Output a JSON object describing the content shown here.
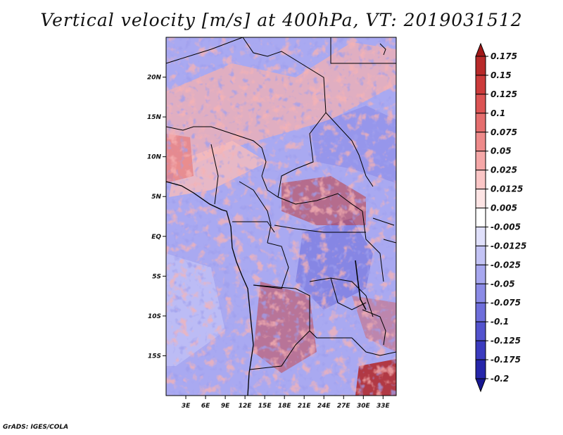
{
  "title": "Vertical velocity [m/s] at 400hPa, VT: 2019031512",
  "credit": "GrADS: IGES/COLA",
  "map": {
    "lat_labels": [
      "20N",
      "15N",
      "10N",
      "5N",
      "EQ",
      "5S",
      "10S",
      "15S"
    ],
    "lon_labels": [
      "3E",
      "6E",
      "9E",
      "12E",
      "15E",
      "18E",
      "21E",
      "24E",
      "27E",
      "30E",
      "33E"
    ],
    "lat_values": [
      20,
      15,
      10,
      5,
      0,
      -5,
      -10,
      -15
    ],
    "lon_values": [
      3,
      6,
      9,
      12,
      15,
      18,
      21,
      24,
      27,
      30,
      33
    ],
    "domain": {
      "lon_min": 0,
      "lon_max": 35,
      "lat_min": -20,
      "lat_max": 25
    }
  },
  "colorbar": {
    "levels": [
      "0.175",
      "0.15",
      "0.125",
      "0.1",
      "0.075",
      "0.05",
      "0.025",
      "0.0125",
      "0.005",
      "-0.005",
      "-0.0125",
      "-0.025",
      "-0.05",
      "-0.075",
      "-0.1",
      "-0.125",
      "-0.175",
      "-0.2"
    ],
    "colors": [
      "#a01818",
      "#b82a2a",
      "#cc3b3b",
      "#dc5454",
      "#e56e6e",
      "#ee8a8a",
      "#f5a7a7",
      "#fbc6c6",
      "#fde4e4",
      "#ffffff",
      "#e0e0fb",
      "#c3c3f5",
      "#a7a7ef",
      "#8b8be6",
      "#6e6edb",
      "#5353ce",
      "#3b3bbf",
      "#2626aa",
      "#171791"
    ]
  }
}
